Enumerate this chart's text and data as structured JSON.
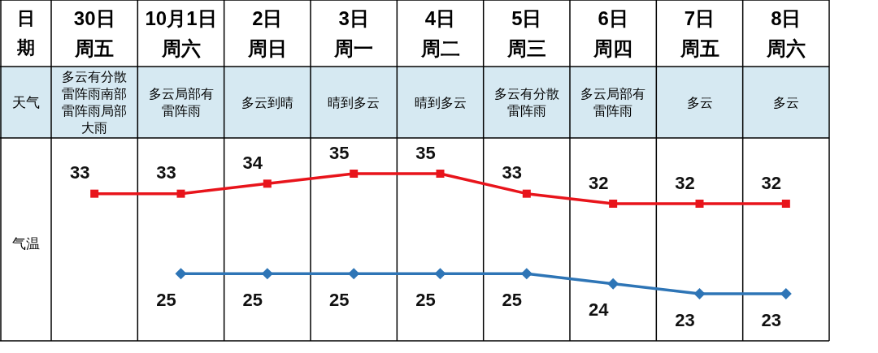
{
  "chart_data": {
    "type": "line",
    "xlabel": "日期",
    "ylabel": "气温",
    "categories": [
      "30日",
      "10月1日",
      "2日",
      "3日",
      "4日",
      "5日",
      "6日",
      "7日",
      "8日"
    ],
    "series": [
      {
        "color": "#e8141b",
        "marker": "square",
        "values": [
          33,
          33,
          34,
          35,
          35,
          33,
          32,
          32,
          32
        ]
      },
      {
        "color": "#2e75b6",
        "marker": "diamond",
        "values": [
          null,
          25,
          25,
          25,
          25,
          25,
          24,
          23,
          23
        ]
      }
    ],
    "data_labels": true,
    "annotations": [
      "天气",
      "周五",
      "周六",
      "周日",
      "周一",
      "周二",
      "周三",
      "周四",
      "周五",
      "周六",
      "多云有分散雷阵雨南部雷阵雨局部大雨",
      "多云局部有雷阵雨",
      "多云到晴",
      "晴到多云",
      "晴到多云",
      "多云有分散雷阵雨",
      "多云局部有雷阵雨",
      "多云",
      "多云"
    ]
  }
}
